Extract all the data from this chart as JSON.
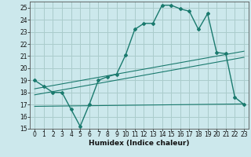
{
  "xlabel": "Humidex (Indice chaleur)",
  "ylabel": "",
  "background_color": "#cce8ec",
  "grid_color": "#aacccc",
  "line_color": "#1a7a6e",
  "xlim": [
    -0.5,
    23.5
  ],
  "ylim": [
    15,
    25.5
  ],
  "yticks": [
    15,
    16,
    17,
    18,
    19,
    20,
    21,
    22,
    23,
    24,
    25
  ],
  "xticks": [
    0,
    1,
    2,
    3,
    4,
    5,
    6,
    7,
    8,
    9,
    10,
    11,
    12,
    13,
    14,
    15,
    16,
    17,
    18,
    19,
    20,
    21,
    22,
    23
  ],
  "curve1_x": [
    0,
    1,
    2,
    3,
    4,
    5,
    6,
    7,
    8,
    9,
    10,
    11,
    12,
    13,
    14,
    15,
    16,
    17,
    18,
    19,
    20,
    21,
    22,
    23
  ],
  "curve1_y": [
    19.0,
    18.5,
    18.0,
    18.0,
    16.6,
    15.2,
    17.0,
    19.0,
    19.3,
    19.5,
    21.1,
    23.2,
    23.7,
    23.7,
    25.2,
    25.2,
    24.9,
    24.7,
    23.2,
    24.5,
    21.3,
    21.2,
    17.6,
    17.0
  ],
  "curve2_x": [
    0,
    23
  ],
  "curve2_y": [
    18.3,
    21.4
  ],
  "curve3_x": [
    0,
    23
  ],
  "curve3_y": [
    17.8,
    20.9
  ],
  "curve4_x": [
    0,
    23
  ],
  "curve4_y": [
    16.85,
    17.05
  ]
}
